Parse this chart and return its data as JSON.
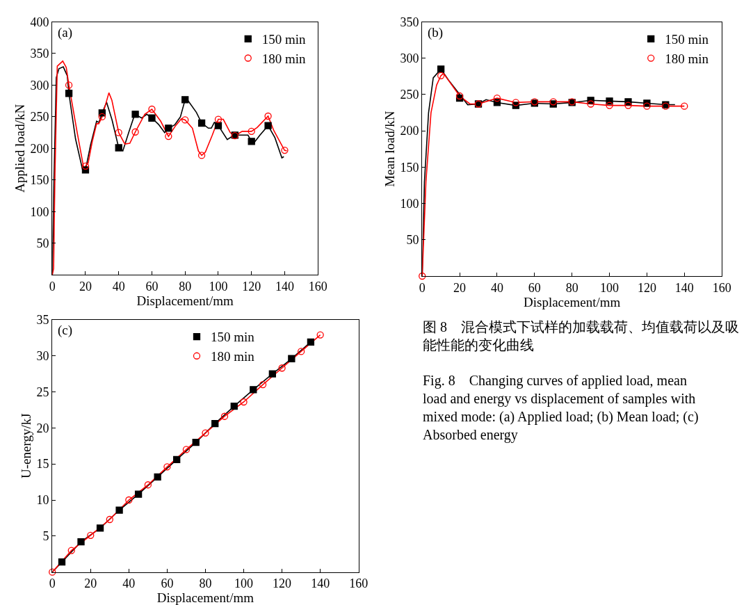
{
  "chart_data": [
    {
      "type": "line",
      "xlabel": "Displacement/mm",
      "ylabel": "Applied load/kN",
      "xlim": [
        0,
        160
      ],
      "xticks": [
        0,
        20,
        40,
        60,
        80,
        100,
        120,
        140,
        160
      ],
      "ylim": [
        0,
        400
      ],
      "yticks": [
        50,
        100,
        150,
        200,
        250,
        300,
        350,
        400
      ],
      "legend": "top right",
      "annotations": [
        "(a)"
      ],
      "series": [
        {
          "type": "line",
          "color": "#000000",
          "marker": "none",
          "x": [
            0,
            1,
            2.4,
            4,
            6.6,
            9,
            10,
            14,
            18.6,
            20,
            23,
            26.7,
            28.1,
            30,
            32.7,
            36,
            40,
            42.5,
            46,
            49.7,
            53.9,
            56.9,
            60,
            64,
            67.7,
            70,
            73.7,
            77.2,
            80,
            80.8,
            86.8,
            90,
            94,
            95.8,
            97.6,
            100,
            105.4,
            107.8,
            110,
            117.9,
            120,
            121.3,
            125.1,
            130,
            134.1,
            138.3,
            139.5
          ],
          "values": [
            0,
            150,
            312,
            326,
            329,
            315,
            287,
            215,
            162,
            166,
            205,
            243,
            241,
            256,
            273,
            245,
            201,
            196,
            225,
            254,
            248,
            254,
            248,
            238,
            225,
            232,
            237,
            250,
            277,
            279,
            257,
            240,
            232,
            232,
            241,
            236,
            214,
            218,
            221,
            221,
            211,
            208,
            221,
            236,
            217,
            185,
            187
          ]
        },
        {
          "type": "line",
          "color": "#ff0000",
          "marker": "none",
          "x": [
            0,
            0.8,
            1.6,
            3,
            6.3,
            8.4,
            10,
            15,
            19.2,
            20,
            21.6,
            24,
            26.7,
            28,
            30,
            34.1,
            35.9,
            40,
            43.7,
            46.7,
            50,
            55.7,
            60,
            65.3,
            70,
            74.3,
            77.8,
            80,
            84.4,
            88,
            90,
            92.2,
            96.4,
            100,
            103,
            107.2,
            110,
            114.4,
            120,
            123.4,
            130,
            133.5,
            139.9,
            141.3
          ],
          "values": [
            0,
            10,
            160,
            330,
            338,
            328,
            300,
            225,
            165,
            172,
            177,
            210,
            239,
            239,
            250,
            288,
            276,
            225,
            207,
            208,
            226,
            254,
            262,
            243,
            219,
            236,
            247,
            245,
            232,
            196,
            189,
            194,
            221,
            246,
            246,
            225,
            220,
            227,
            227,
            233,
            251,
            228,
            197,
            196
          ]
        },
        {
          "name": "150 min",
          "type": "scatter",
          "color": "#000000",
          "marker": "square",
          "x": [
            10,
            20,
            30,
            40,
            50,
            60,
            70,
            80,
            90,
            100,
            110,
            120,
            130
          ],
          "values": [
            287,
            166,
            256,
            201,
            254,
            248,
            232,
            277,
            240,
            236,
            221,
            211,
            236
          ]
        },
        {
          "name": "180 min",
          "type": "scatter",
          "color": "#ff0000",
          "marker": "circle",
          "x": [
            10,
            20,
            30,
            40,
            50,
            60,
            70,
            80,
            90,
            100,
            110,
            120,
            130,
            140
          ],
          "values": [
            300,
            172,
            250,
            225,
            226,
            262,
            219,
            245,
            189,
            246,
            220,
            227,
            251,
            197
          ]
        }
      ]
    },
    {
      "type": "line",
      "xlabel": "Displacement/mm",
      "ylabel": "Mean load/kN",
      "xlim": [
        0,
        160
      ],
      "xticks": [
        0,
        20,
        40,
        60,
        80,
        100,
        120,
        140,
        160
      ],
      "ylim": [
        0,
        350
      ],
      "yticks": [
        50,
        100,
        150,
        200,
        250,
        300,
        350
      ],
      "legend": "top right",
      "annotations": [
        "(b)"
      ],
      "series": [
        {
          "type": "line",
          "color": "#000000",
          "marker": "none",
          "x": [
            0,
            1.2,
            3.4,
            5.9,
            10,
            14,
            24.3,
            30,
            34.1,
            40,
            50,
            60,
            70,
            80,
            90,
            100,
            110,
            120,
            130,
            135
          ],
          "values": [
            0,
            130,
            225,
            273,
            285,
            270,
            236,
            237,
            243,
            239,
            235,
            238,
            237,
            239,
            242,
            241,
            240,
            238,
            236,
            236
          ]
        },
        {
          "type": "line",
          "color": "#ff0000",
          "marker": "none",
          "x": [
            0,
            2,
            4.7,
            7.7,
            10,
            11.4,
            20,
            25.5,
            30,
            40,
            50,
            60,
            70,
            80,
            90,
            100,
            110,
            120,
            130,
            140
          ],
          "values": [
            0,
            130,
            225,
            263,
            276,
            279,
            248,
            237,
            237,
            245,
            239,
            240,
            240,
            240,
            237,
            235,
            235,
            234,
            234,
            234
          ]
        },
        {
          "name": "150 min",
          "type": "scatter",
          "color": "#000000",
          "marker": "square",
          "x": [
            10,
            20,
            30,
            40,
            50,
            60,
            70,
            80,
            90,
            100,
            110,
            120,
            130
          ],
          "values": [
            285,
            245,
            237,
            239,
            235,
            238,
            237,
            239,
            242,
            241,
            240,
            238,
            236
          ]
        },
        {
          "name": "180 min",
          "type": "scatter",
          "color": "#ff0000",
          "marker": "circle",
          "x": [
            0,
            10,
            20,
            30,
            40,
            50,
            60,
            70,
            80,
            90,
            100,
            110,
            120,
            130,
            140
          ],
          "values": [
            0,
            276,
            248,
            237,
            245,
            239,
            240,
            240,
            240,
            237,
            235,
            235,
            234,
            234,
            234
          ]
        }
      ]
    },
    {
      "type": "line",
      "xlabel": "Displacement/mm",
      "ylabel": "U-energy/kJ",
      "xlim": [
        0,
        160
      ],
      "xticks": [
        0,
        20,
        40,
        60,
        80,
        100,
        120,
        140,
        160
      ],
      "ylim": [
        0,
        35
      ],
      "yticks": [
        5,
        10,
        15,
        20,
        25,
        30,
        35
      ],
      "legend": "top",
      "annotations": [
        "(c)"
      ],
      "series": [
        {
          "type": "line",
          "color": "#000000",
          "marker": "none",
          "x": [
            0,
            5,
            15,
            25,
            35,
            45,
            55,
            65,
            75,
            85,
            95,
            105,
            115,
            125,
            135
          ],
          "values": [
            0,
            1.4,
            4.2,
            6.1,
            8.6,
            10.8,
            13.2,
            15.6,
            18.0,
            20.6,
            23.0,
            25.3,
            27.5,
            29.6,
            31.9
          ]
        },
        {
          "type": "line",
          "color": "#ff0000",
          "marker": "none",
          "x": [
            0,
            10,
            20,
            30,
            40,
            50,
            60,
            70,
            80,
            90,
            100,
            110,
            120,
            130,
            140
          ],
          "values": [
            0,
            3.0,
            5.1,
            7.3,
            10.0,
            12.1,
            14.6,
            17.0,
            19.3,
            21.6,
            23.6,
            26.0,
            28.3,
            30.6,
            32.9
          ]
        },
        {
          "name": "150 min",
          "type": "scatter",
          "color": "#000000",
          "marker": "square",
          "x": [
            5,
            15,
            25,
            35,
            45,
            55,
            65,
            75,
            85,
            95,
            105,
            115,
            125,
            135
          ],
          "values": [
            1.4,
            4.2,
            6.1,
            8.6,
            10.8,
            13.2,
            15.6,
            18.0,
            20.6,
            23.0,
            25.3,
            27.5,
            29.6,
            31.9
          ]
        },
        {
          "name": "180 min",
          "type": "scatter",
          "color": "#ff0000",
          "marker": "circle",
          "x": [
            0,
            10,
            20,
            30,
            40,
            50,
            60,
            70,
            80,
            90,
            100,
            110,
            120,
            130,
            140
          ],
          "values": [
            0,
            3.0,
            5.1,
            7.3,
            10.0,
            12.1,
            14.6,
            17.0,
            19.3,
            21.6,
            23.6,
            26.0,
            28.3,
            30.6,
            32.9
          ]
        }
      ]
    },
    {
      "type": "other",
      "annotations": [
        "图 8　混合模式下试样的加载载荷、均值载荷以及吸能性能的变化曲线",
        "Fig. 8　Changing curves of applied load, mean load and energy vs displacement of samples with mixed mode: (a) Applied load; (b) Mean load; (c) Absorbed energy"
      ]
    }
  ]
}
